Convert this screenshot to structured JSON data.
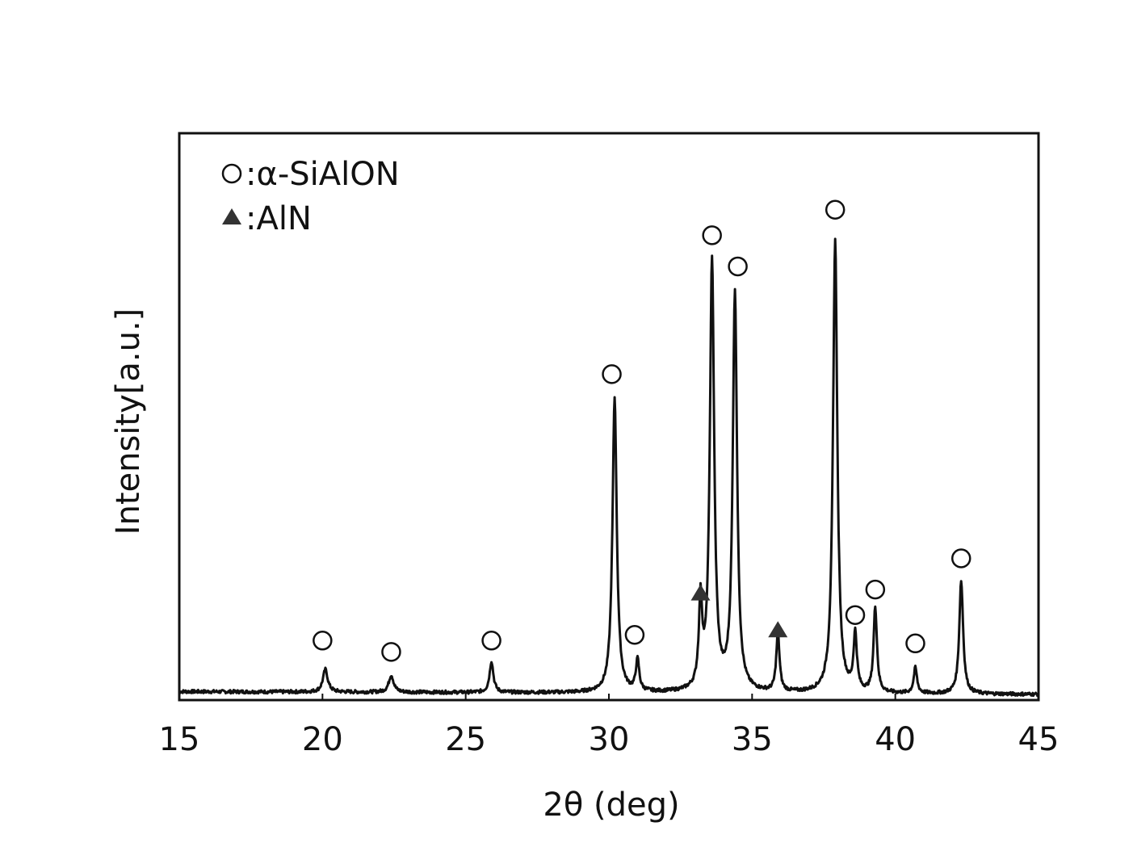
{
  "chart_data": {
    "type": "line",
    "title": "",
    "xlabel": "2θ (deg)",
    "ylabel": "Intensity[a.u.]",
    "xlim": [
      15,
      45
    ],
    "ylim": [
      0,
      100
    ],
    "xticks": [
      15,
      20,
      25,
      30,
      35,
      40,
      45
    ],
    "grid": false,
    "legend_position": "top-left",
    "legend": [
      {
        "symbol": "open-circle",
        "label": "α-SiAlON"
      },
      {
        "symbol": "filled-triangle",
        "label": "AlN"
      }
    ],
    "baseline": 1.5,
    "peaks": [
      {
        "x": 20.1,
        "height": 4.0,
        "width": 0.1
      },
      {
        "x": 22.4,
        "height": 3.0,
        "width": 0.1
      },
      {
        "x": 25.9,
        "height": 5.5,
        "width": 0.08
      },
      {
        "x": 30.2,
        "height": 52.0,
        "width": 0.09
      },
      {
        "x": 31.0,
        "height": 5.5,
        "width": 0.07
      },
      {
        "x": 33.2,
        "height": 15.0,
        "width": 0.07
      },
      {
        "x": 33.6,
        "height": 76.0,
        "width": 0.09
      },
      {
        "x": 34.4,
        "height": 70.0,
        "width": 0.09
      },
      {
        "x": 35.9,
        "height": 10.0,
        "width": 0.07
      },
      {
        "x": 37.9,
        "height": 80.0,
        "width": 0.09
      },
      {
        "x": 38.6,
        "height": 10.0,
        "width": 0.07
      },
      {
        "x": 39.3,
        "height": 15.0,
        "width": 0.07
      },
      {
        "x": 40.7,
        "height": 4.5,
        "width": 0.07
      },
      {
        "x": 42.3,
        "height": 20.0,
        "width": 0.08
      }
    ],
    "markers": [
      {
        "x": 20.0,
        "y": 10.5,
        "symbol": "open-circle"
      },
      {
        "x": 22.4,
        "y": 8.5,
        "symbol": "open-circle"
      },
      {
        "x": 25.9,
        "y": 10.5,
        "symbol": "open-circle"
      },
      {
        "x": 30.1,
        "y": 57.5,
        "symbol": "open-circle"
      },
      {
        "x": 30.9,
        "y": 11.5,
        "symbol": "open-circle"
      },
      {
        "x": 33.6,
        "y": 82.0,
        "symbol": "open-circle"
      },
      {
        "x": 34.5,
        "y": 76.5,
        "symbol": "open-circle"
      },
      {
        "x": 37.9,
        "y": 86.5,
        "symbol": "open-circle"
      },
      {
        "x": 38.6,
        "y": 15.0,
        "symbol": "open-circle"
      },
      {
        "x": 39.3,
        "y": 19.5,
        "symbol": "open-circle"
      },
      {
        "x": 40.7,
        "y": 10.0,
        "symbol": "open-circle"
      },
      {
        "x": 42.3,
        "y": 25.0,
        "symbol": "open-circle"
      },
      {
        "x": 33.2,
        "y": 19.0,
        "symbol": "filled-triangle"
      },
      {
        "x": 35.9,
        "y": 12.5,
        "symbol": "filled-triangle"
      }
    ]
  }
}
